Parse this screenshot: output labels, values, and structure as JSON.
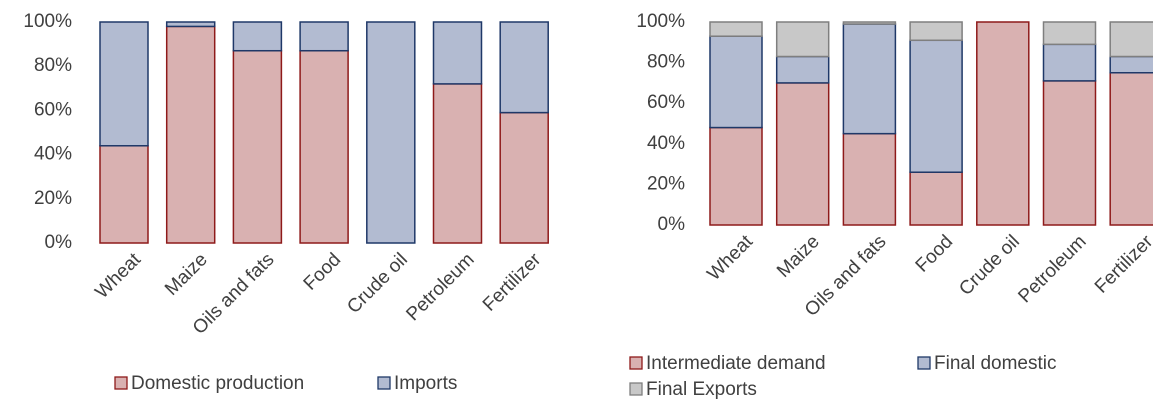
{
  "chart_data": [
    {
      "type": "stacked_bar",
      "categories": [
        "Wheat",
        "Maize",
        "Oils and fats",
        "Food",
        "Crude oil",
        "Petroleum",
        "Fertilizer"
      ],
      "series": [
        {
          "name": "Domestic production",
          "color": "#d9b1b1",
          "stroke": "#8e1a1a",
          "values": [
            44,
            98,
            87,
            87,
            0,
            72,
            59
          ]
        },
        {
          "name": "Imports",
          "color": "#b2bbd1",
          "stroke": "#1f3868",
          "values": [
            56,
            2,
            13,
            13,
            100,
            28,
            41
          ]
        }
      ],
      "ylim": [
        0,
        100
      ],
      "yticks": [
        {
          "value": 0,
          "label": "0%"
        },
        {
          "value": 20,
          "label": "20%"
        },
        {
          "value": 40,
          "label": "40%"
        },
        {
          "value": 60,
          "label": "60%"
        },
        {
          "value": 80,
          "label": "80%"
        },
        {
          "value": 100,
          "label": "100%"
        }
      ]
    },
    {
      "type": "stacked_bar",
      "categories": [
        "Wheat",
        "Maize",
        "Oils and fats",
        "Food",
        "Crude oil",
        "Petroleum",
        "Fertilizer"
      ],
      "series": [
        {
          "name": "Intermediate demand",
          "color": "#d9b1b1",
          "stroke": "#8e1a1a",
          "values": [
            48,
            70,
            45,
            26,
            100,
            71,
            75
          ]
        },
        {
          "name": "Final domestic",
          "color": "#b2bbd1",
          "stroke": "#1f3868",
          "values": [
            45,
            13,
            54,
            65,
            0,
            18,
            8
          ]
        },
        {
          "name": "Final Exports",
          "color": "#c8c8c8",
          "stroke": "#7f7f7f",
          "values": [
            7,
            17,
            1,
            9,
            0,
            11,
            17
          ]
        }
      ],
      "ylim": [
        0,
        100
      ],
      "yticks": [
        {
          "value": 0,
          "label": "0%"
        },
        {
          "value": 20,
          "label": "20%"
        },
        {
          "value": 40,
          "label": "40%"
        },
        {
          "value": 60,
          "label": "60%"
        },
        {
          "value": 80,
          "label": "80%"
        },
        {
          "value": 100,
          "label": "100%"
        }
      ]
    }
  ]
}
